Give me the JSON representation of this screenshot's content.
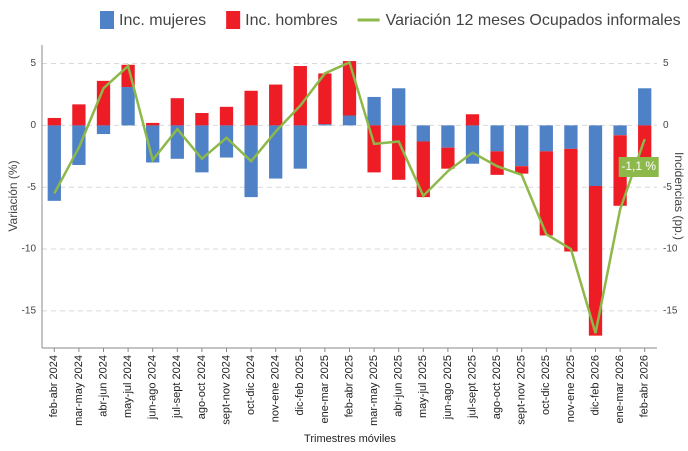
{
  "chart_data": {
    "type": "bar",
    "categories": [
      "feb-abr 2024",
      "mar-may 2024",
      "abr-jun 2024",
      "may-jul 2024",
      "jun-ago 2024",
      "jul-sept 2024",
      "ago-oct 2024",
      "sept-nov 2024",
      "oct-dic 2024",
      "nov-ene 2024",
      "dic-feb 2025",
      "ene-mar 2025",
      "feb-abr 2025",
      "mar-may 2025",
      "abr-jun 2025",
      "may-jul 2025",
      "jun-ago 2025",
      "jul-sept 2025",
      "ago-oct 2025",
      "sept-nov 2025",
      "oct-dic 2025",
      "nov-ene 2025",
      "dic-feb 2026",
      "ene-mar 2026",
      "feb-abr 2026"
    ],
    "series": [
      {
        "name": "Inc. mujeres",
        "color": "#4f81c7",
        "axis": "y2",
        "values": [
          -6.1,
          -3.2,
          -0.7,
          3.1,
          -3.0,
          -2.7,
          -3.8,
          -2.6,
          -5.8,
          -4.3,
          -3.5,
          0.1,
          0.8,
          2.3,
          3.0,
          -1.3,
          -1.8,
          -3.1,
          -2.1,
          -3.3,
          -2.1,
          -1.9,
          -4.9,
          -0.8,
          3.0
        ]
      },
      {
        "name": "Inc. hombres",
        "color": "#ee1c25",
        "axis": "y2",
        "values": [
          0.6,
          1.7,
          3.6,
          1.8,
          0.2,
          2.2,
          1.0,
          1.5,
          2.8,
          3.3,
          4.8,
          4.1,
          4.4,
          -3.8,
          -4.4,
          -4.5,
          -1.7,
          0.9,
          -1.9,
          -0.6,
          -6.8,
          -8.3,
          -12.1,
          -5.7,
          -4.1
        ]
      },
      {
        "name": "Variación 12 meses Ocupados informales",
        "color": "#8db84a",
        "type": "line",
        "values": [
          -5.5,
          -1.8,
          3.0,
          4.8,
          -2.8,
          -0.3,
          -2.7,
          -1.0,
          -2.9,
          -0.5,
          1.6,
          4.2,
          5.1,
          -1.5,
          -1.3,
          -5.7,
          -3.7,
          -2.2,
          -3.3,
          -4.0,
          -8.8,
          -10.0,
          -16.8,
          -6.8,
          -1.1
        ],
        "value_labels": [
          null,
          null,
          null,
          null,
          null,
          null,
          null,
          null,
          null,
          null,
          null,
          null,
          null,
          null,
          null,
          null,
          null,
          null,
          null,
          null,
          null,
          null,
          null,
          null,
          "-1,1 %"
        ]
      }
    ],
    "ylabel": "Variación (%)",
    "y2label": "Incidencias (pp.)",
    "xlabel": "Trimestres móviles",
    "ylim": [
      -18,
      6.5
    ],
    "yticks": [
      -15,
      -10,
      -5,
      0,
      5
    ],
    "y2lim": [
      -18,
      6.5
    ],
    "y2ticks": [
      -15,
      -10,
      -5,
      0,
      5
    ],
    "grid": true,
    "legend": "top"
  }
}
